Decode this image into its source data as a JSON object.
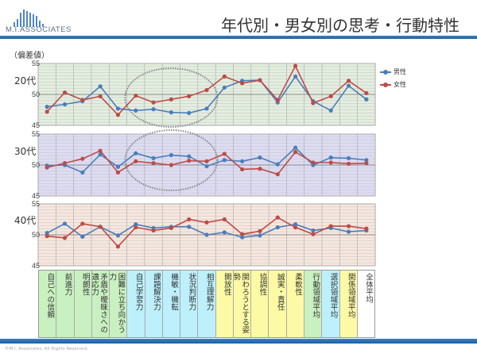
{
  "header": {
    "logo_text": "M.I.ASSOCIATES",
    "title": "年代別・男女別の思考・行動特性"
  },
  "footer": {
    "copyright": "©M.I. Associates. All Rights Reserved."
  },
  "colors": {
    "male": "#4a7ebb",
    "female": "#be4b48",
    "accent": "#2a6fb0",
    "bg_20": "#e3eedf",
    "bg_30": "#dddcf3",
    "bg_40": "#f7e7de",
    "cat_green": "#c8f0c0",
    "cat_cyan": "#bdf0fb",
    "cat_yellow": "#fdfaa6",
    "cat_white": "#ffffff"
  },
  "chart_data": {
    "type": "line",
    "ylabel": "（偏差値）",
    "ylim": [
      45,
      55
    ],
    "yticks": [
      55,
      50,
      45
    ],
    "grid": true,
    "legend_position": "right",
    "legend": [
      "男性",
      "女性"
    ],
    "categories": [
      "自己への信頼",
      "前進力",
      "明朗性",
      "矛盾や曖昧さへの適応力",
      "困難に立ち向かう力",
      "自己学習力",
      "課題解決力",
      "機敏・機転",
      "状況判断力",
      "相互理解力",
      "開放性",
      "関わろうとする姿勢",
      "協調性",
      "誠実・責任",
      "柔軟性",
      "行動領域平均",
      "選択領域平均",
      "関係領域平均",
      "全体平均"
    ],
    "category_colors": [
      "cat_green",
      "cat_green",
      "cat_green",
      "cat_green",
      "cat_green",
      "cat_cyan",
      "cat_cyan",
      "cat_cyan",
      "cat_cyan",
      "cat_cyan",
      "cat_yellow",
      "cat_yellow",
      "cat_yellow",
      "cat_yellow",
      "cat_yellow",
      "cat_green",
      "cat_cyan",
      "cat_yellow",
      "cat_white"
    ],
    "panels": [
      {
        "label": "20代",
        "bg": "bg_20",
        "highlight": "自己学習力〜相互理解力",
        "series": [
          {
            "name": "男性",
            "values": [
              48.0,
              48.4,
              48.9,
              51.3,
              47.7,
              47.4,
              47.6,
              47.1,
              47.0,
              47.7,
              51.1,
              52.2,
              52.3,
              48.7,
              52.9,
              48.9,
              47.4,
              51.4,
              49.2
            ]
          },
          {
            "name": "女性",
            "values": [
              47.2,
              50.3,
              49.1,
              49.7,
              46.7,
              49.8,
              48.7,
              49.2,
              49.7,
              50.7,
              52.9,
              51.8,
              52.3,
              49.1,
              54.6,
              48.6,
              49.7,
              52.2,
              50.2
            ]
          }
        ]
      },
      {
        "label": "30代",
        "bg": "bg_30",
        "highlight": "自己学習力〜相互理解力",
        "series": [
          {
            "name": "男性",
            "values": [
              49.9,
              50.0,
              48.8,
              51.7,
              49.7,
              51.9,
              51.1,
              51.6,
              51.4,
              49.8,
              50.8,
              50.6,
              51.2,
              50.1,
              52.8,
              50.0,
              51.2,
              51.1,
              50.8
            ]
          },
          {
            "name": "女性",
            "values": [
              49.6,
              50.3,
              51.0,
              52.3,
              48.8,
              50.6,
              50.3,
              50.0,
              50.7,
              50.6,
              51.8,
              49.3,
              49.4,
              48.5,
              52.1,
              50.4,
              50.4,
              50.2,
              50.3
            ]
          }
        ]
      },
      {
        "label": "40代",
        "bg": "bg_40",
        "series": [
          {
            "name": "男性",
            "values": [
              50.3,
              51.8,
              49.7,
              51.3,
              49.9,
              51.7,
              51.1,
              51.3,
              51.3,
              50.0,
              50.4,
              49.6,
              49.9,
              51.2,
              51.7,
              50.7,
              51.1,
              50.5,
              50.7
            ]
          },
          {
            "name": "女性",
            "values": [
              49.8,
              49.5,
              51.8,
              51.3,
              48.1,
              51.2,
              50.7,
              51.1,
              52.5,
              52.0,
              52.5,
              50.1,
              50.6,
              52.8,
              51.2,
              50.1,
              51.4,
              51.4,
              51.0
            ]
          }
        ]
      }
    ]
  }
}
